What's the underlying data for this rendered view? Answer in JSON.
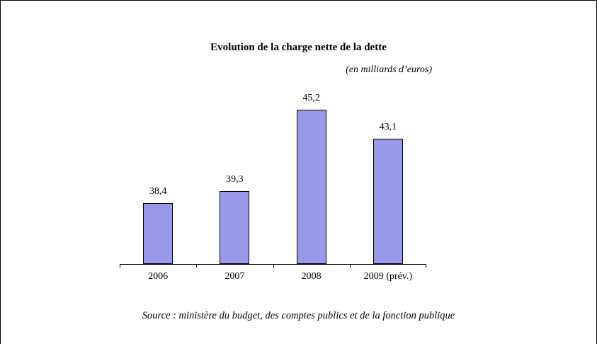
{
  "chart_data": {
    "type": "bar",
    "title": "Evolution de la charge nette de la dette",
    "subtitle": "(en milliards d’euros)",
    "categories": [
      "2006",
      "2007",
      "2008",
      "2009 (prév.)"
    ],
    "values": [
      38.4,
      39.3,
      45.2,
      43.1
    ],
    "value_labels": [
      "38,4",
      "39,3",
      "45,2",
      "43,1"
    ],
    "ylim": [
      34,
      45.9
    ],
    "grid": false,
    "legend": "none",
    "bar_color": "#9999EB",
    "bar_border_color": "#000000",
    "source": "Source : ministère du budget, des comptes publics et de la fonction publique"
  }
}
